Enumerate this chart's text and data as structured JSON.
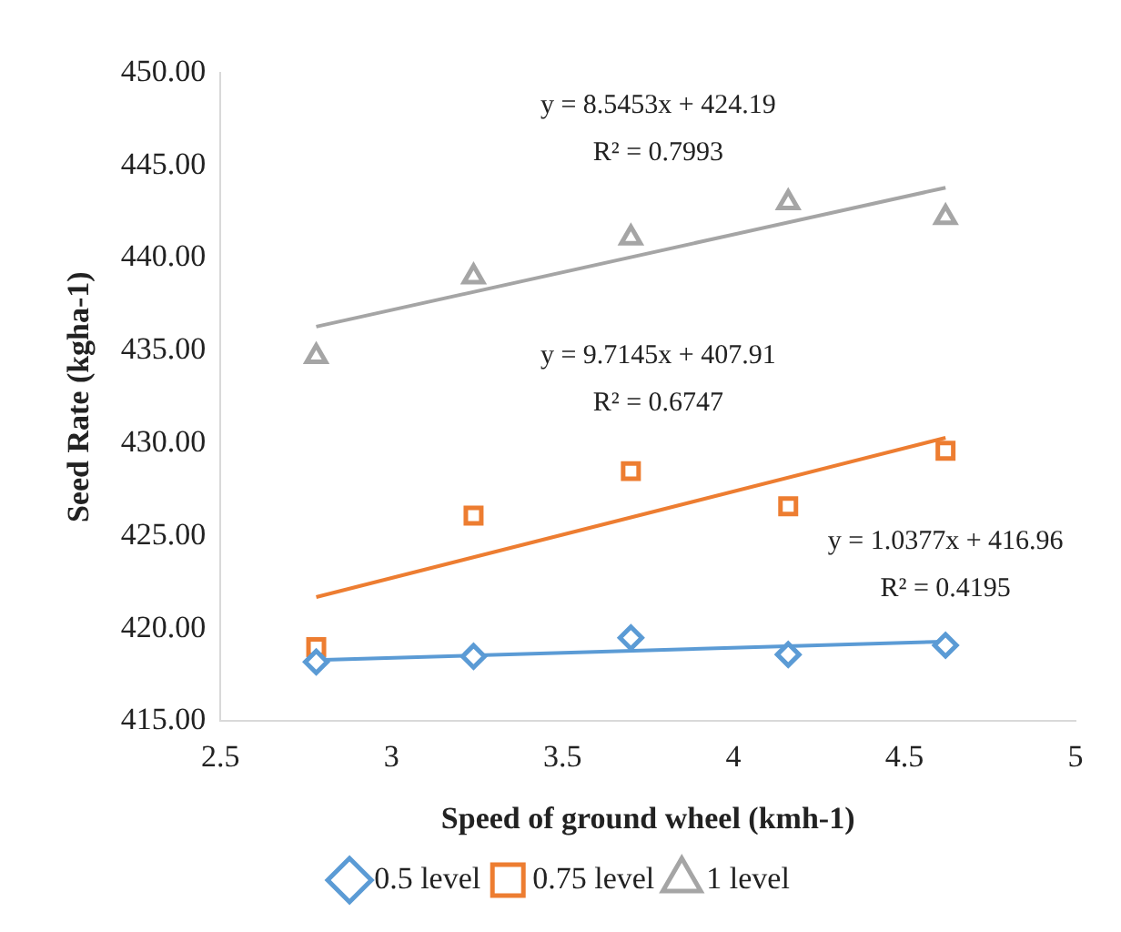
{
  "chart_data": {
    "type": "scatter",
    "xlabel": "Speed of ground wheel (kmh-1)",
    "ylabel": "Seed Rate (kgha-1)",
    "xlim": [
      2.5,
      5
    ],
    "xticks": [
      2.5,
      3,
      3.5,
      4,
      4.5,
      5
    ],
    "ylim": [
      415,
      450
    ],
    "yticks": [
      {
        "value": 415,
        "label": "415.00"
      },
      {
        "value": 420,
        "label": "420.00"
      },
      {
        "value": 425,
        "label": "425.00"
      },
      {
        "value": 430,
        "label": "430.00"
      },
      {
        "value": 435,
        "label": "435.00"
      },
      {
        "value": 440,
        "label": "440.00"
      },
      {
        "value": 445,
        "label": "445.00"
      },
      {
        "value": 450,
        "label": "450.00"
      }
    ],
    "grid": false,
    "legend": "bottom",
    "x": [
      2.78,
      3.24,
      3.7,
      4.16,
      4.62
    ],
    "series": [
      {
        "name": "0.5 level",
        "marker": "diamond",
        "color": "#5b9bd5",
        "values": [
          418.2,
          418.5,
          419.5,
          418.6,
          419.1
        ]
      },
      {
        "name": "0.75 level",
        "marker": "square",
        "color": "#ed7d31",
        "values": [
          419.0,
          426.1,
          428.5,
          426.6,
          429.6
        ]
      },
      {
        "name": "1 level",
        "marker": "triangle",
        "color": "#a5a5a5",
        "values": [
          434.7,
          439.0,
          441.1,
          443.0,
          442.2
        ]
      },
      {
        "type": "line",
        "marker": "none",
        "color": "#a5a5a5",
        "values": [
          436.3,
          null,
          null,
          null,
          443.8
        ]
      },
      {
        "type": "line",
        "marker": "none",
        "color": "#ed7d31",
        "values": [
          421.7,
          null,
          null,
          null,
          430.3
        ]
      },
      {
        "type": "line",
        "marker": "none",
        "color": "#5b9bd5",
        "values": [
          418.3,
          null,
          null,
          null,
          419.3
        ]
      }
    ],
    "annotations": [
      "y = 8.5453x + 424.19",
      "R² = 0.7993",
      "y = 9.7145x + 407.91",
      "R² = 0.6747",
      "y = 1.0377x + 416.96",
      "R² = 0.4195"
    ]
  }
}
